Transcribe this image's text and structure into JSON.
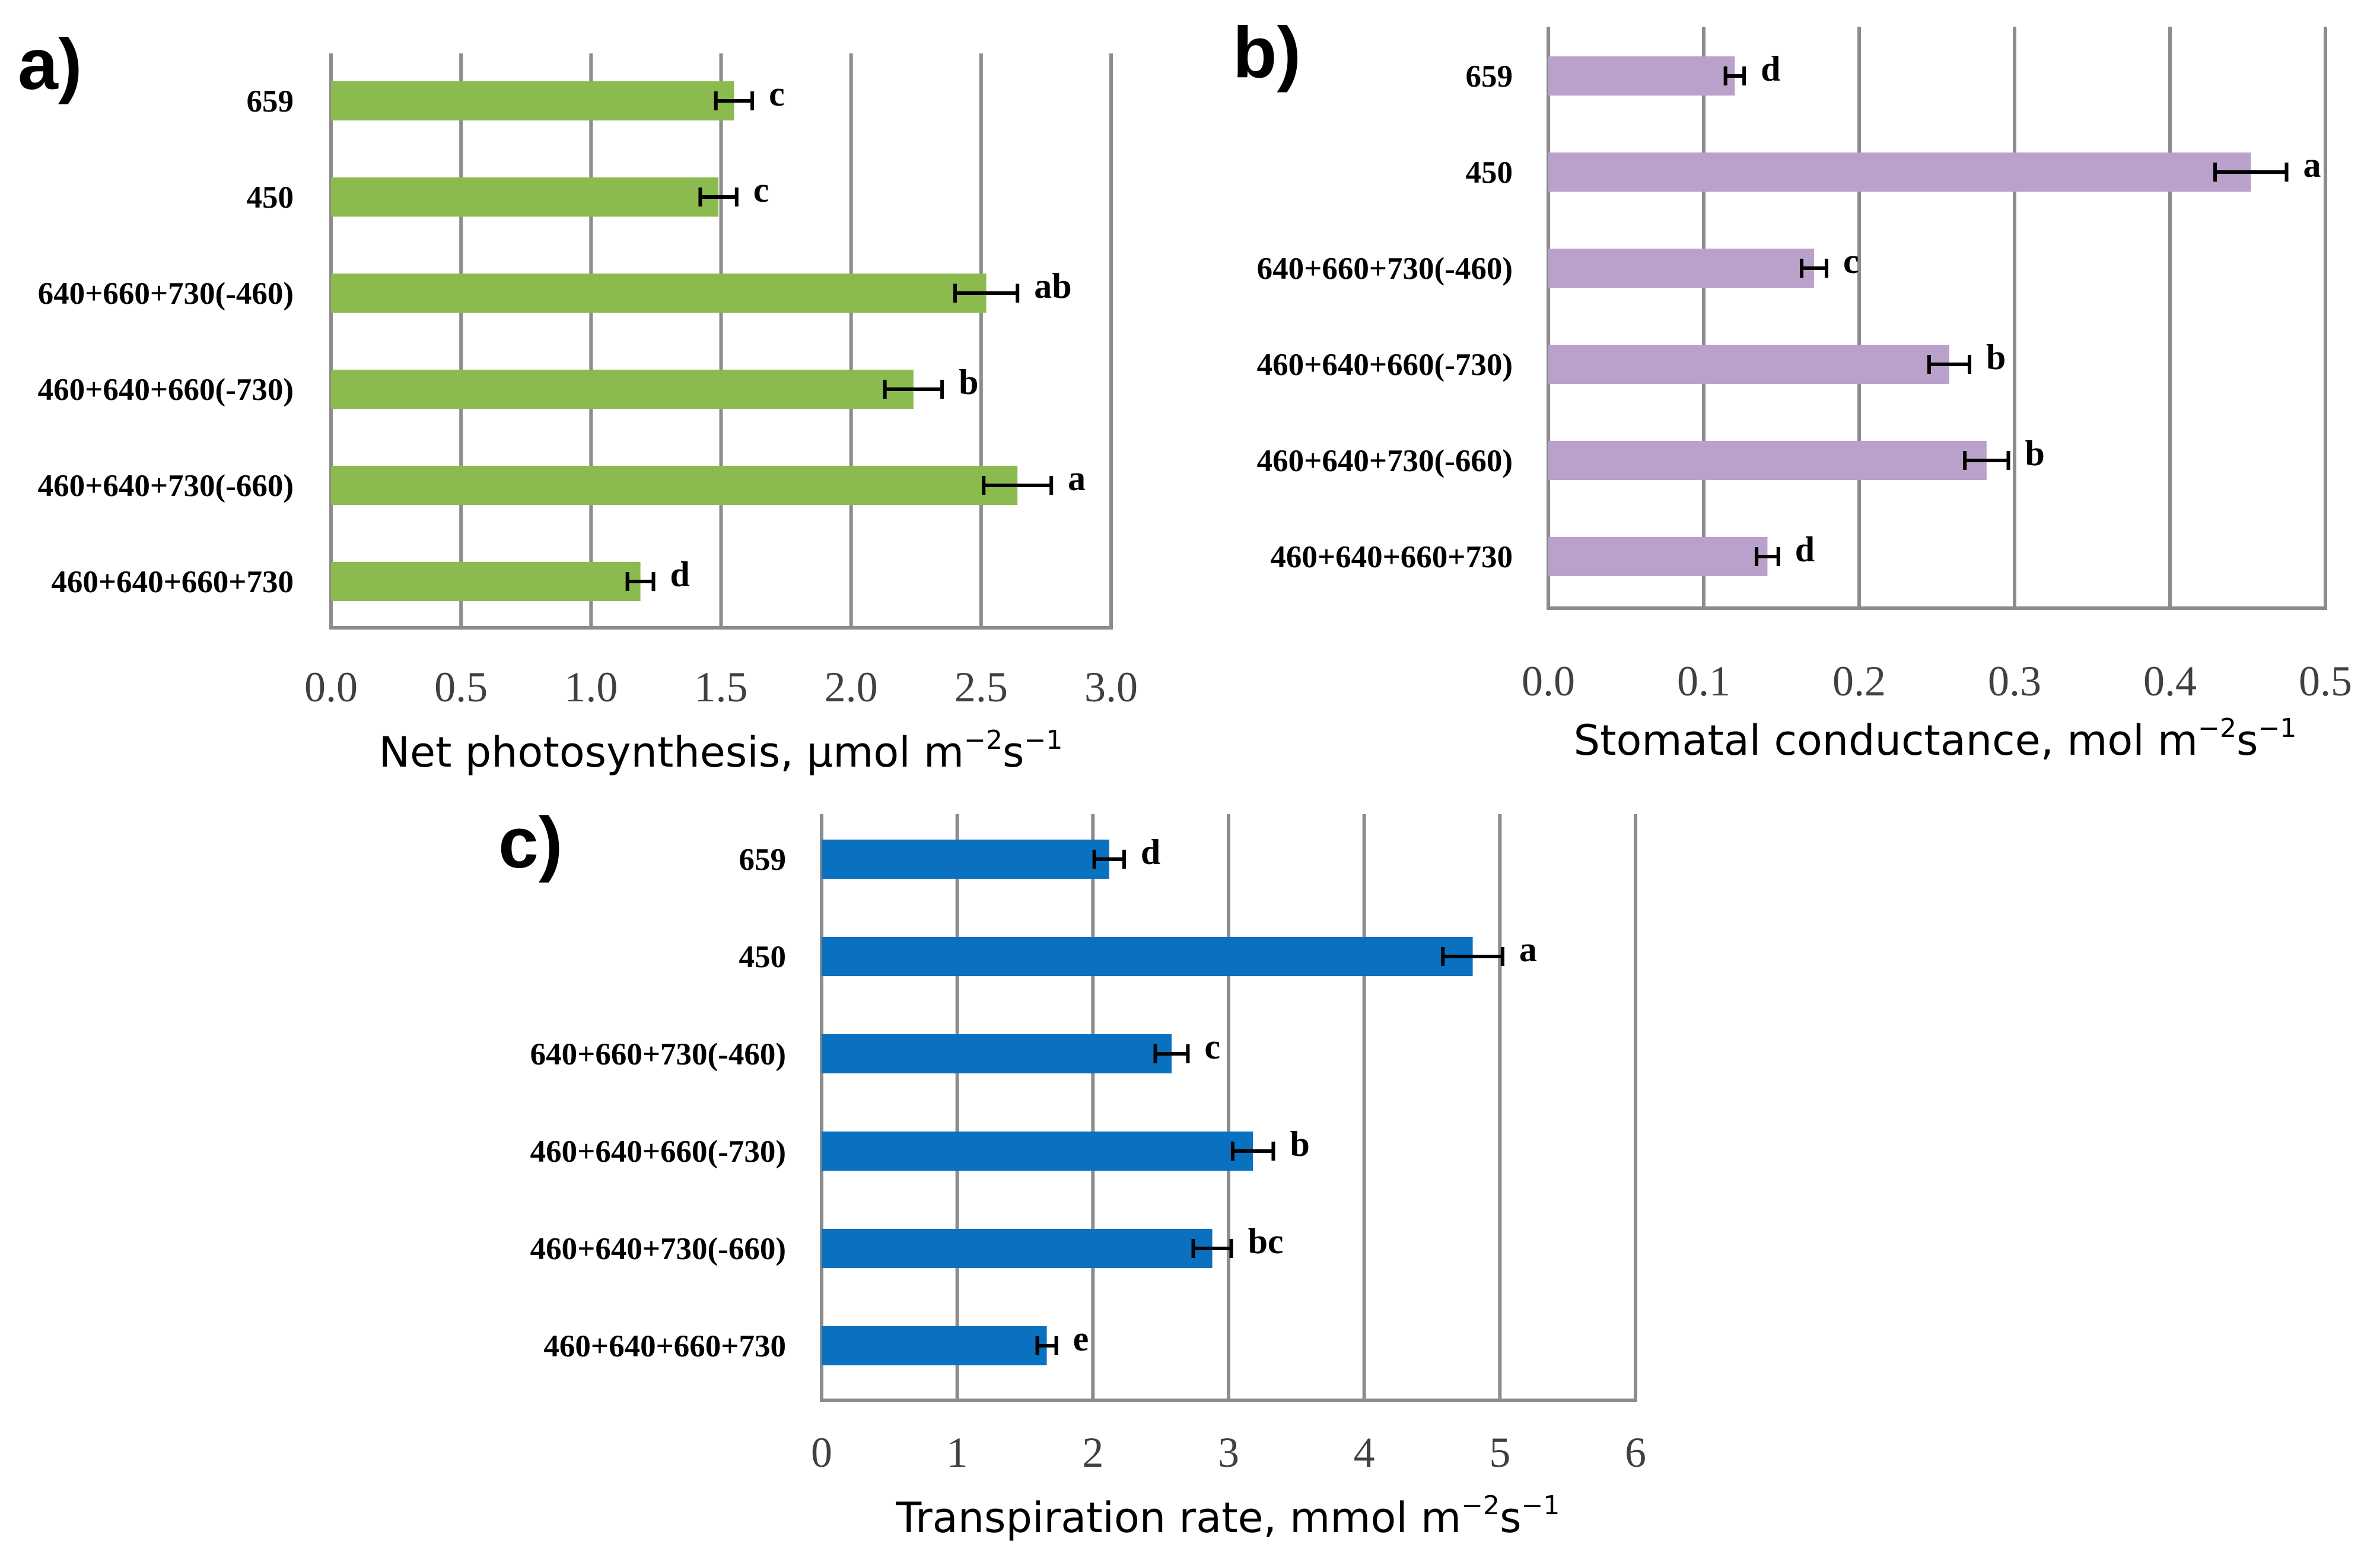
{
  "chart_data": [
    {
      "panel": "a)",
      "type": "bar",
      "orientation": "horizontal",
      "color": "#8BBB4E",
      "categories": [
        "659",
        "450",
        "640+660+730(-460)",
        "460+640+660(-730)",
        "460+640+730(-660)",
        "460+640+660+730"
      ],
      "values": [
        1.55,
        1.49,
        2.52,
        2.24,
        2.64,
        1.19
      ],
      "errors": [
        0.07,
        0.07,
        0.12,
        0.11,
        0.13,
        0.05
      ],
      "significance": [
        "c",
        "c",
        "ab",
        "b",
        "a",
        "d"
      ],
      "xlim": [
        0,
        3.0
      ],
      "ticks": [
        0.0,
        0.5,
        1.0,
        1.5,
        2.0,
        2.5,
        3.0
      ],
      "tick_labels": [
        "0.0",
        "0.5",
        "1.0",
        "1.5",
        "2.0",
        "2.5",
        "3.0"
      ],
      "xlabel": "Net photosynthesis, µmol m",
      "xlabel_unit_m_exp": "−2",
      "xlabel_unit_s": "s",
      "xlabel_unit_s_exp": "−1"
    },
    {
      "panel": "b)",
      "type": "bar",
      "orientation": "horizontal",
      "color": "#B9A1CB",
      "categories": [
        "659",
        "450",
        "640+660+730(-460)",
        "460+640+660(-730)",
        "460+640+730(-660)",
        "460+640+660+730"
      ],
      "values": [
        0.12,
        0.452,
        0.171,
        0.258,
        0.282,
        0.141
      ],
      "errors": [
        0.006,
        0.023,
        0.008,
        0.013,
        0.014,
        0.007
      ],
      "significance": [
        "d",
        "a",
        "c",
        "b",
        "b",
        "d"
      ],
      "xlim": [
        0,
        0.5
      ],
      "ticks": [
        0.0,
        0.1,
        0.2,
        0.3,
        0.4,
        0.5
      ],
      "tick_labels": [
        "0.0",
        "0.1",
        "0.2",
        "0.3",
        "0.4",
        "0.5"
      ],
      "xlabel": "Stomatal conductance, mol m",
      "xlabel_unit_m_exp": "−2",
      "xlabel_unit_s": "s",
      "xlabel_unit_s_exp": "−1"
    },
    {
      "panel": "c)",
      "type": "bar",
      "orientation": "horizontal",
      "color": "#0A70C0",
      "categories": [
        "659",
        "450",
        "640+660+730(-460)",
        "460+640+660(-730)",
        "460+640+730(-660)",
        "460+640+660+730"
      ],
      "values": [
        2.12,
        4.8,
        2.58,
        3.18,
        2.88,
        1.66
      ],
      "errors": [
        0.11,
        0.22,
        0.12,
        0.15,
        0.14,
        0.07
      ],
      "significance": [
        "d",
        "a",
        "c",
        "b",
        "bc",
        "e"
      ],
      "xlim": [
        0,
        6
      ],
      "ticks": [
        0,
        1,
        2,
        3,
        4,
        5,
        6
      ],
      "tick_labels": [
        "0",
        "1",
        "2",
        "3",
        "4",
        "5",
        "6"
      ],
      "xlabel": "Transpiration rate, mmol m",
      "xlabel_unit_m_exp": "−2",
      "xlabel_unit_s": "s",
      "xlabel_unit_s_exp": "−1"
    }
  ]
}
